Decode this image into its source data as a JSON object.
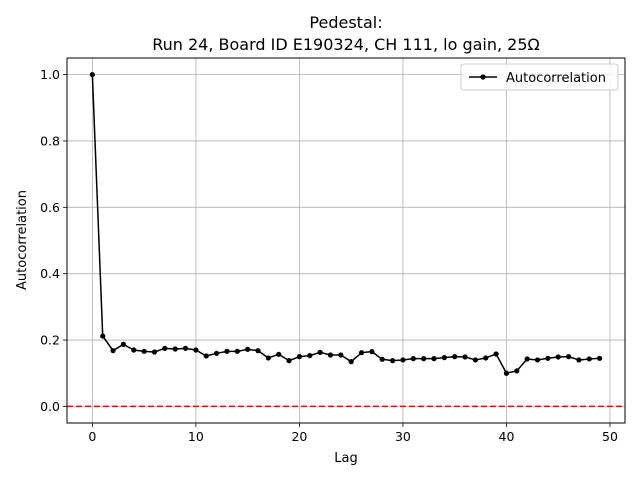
{
  "chart_data": {
    "type": "line",
    "title_line1": "Pedestal:",
    "title_line2": "Run 24, Board ID E190324, CH 111, lo gain, 25Ω",
    "xlabel": "Lag",
    "ylabel": "Autocorrelation",
    "xlim": [
      -2.45,
      51.45
    ],
    "ylim": [
      -0.05,
      1.05
    ],
    "xticks": [
      0,
      10,
      20,
      30,
      40,
      50
    ],
    "yticks": [
      0.0,
      0.2,
      0.4,
      0.6,
      0.8,
      1.0
    ],
    "grid": true,
    "legend_position": "top-right",
    "series": [
      {
        "name": "Autocorrelation",
        "color": "#000000",
        "marker": "circle",
        "x": [
          0,
          1,
          2,
          3,
          4,
          5,
          6,
          7,
          8,
          9,
          10,
          11,
          12,
          13,
          14,
          15,
          16,
          17,
          18,
          19,
          20,
          21,
          22,
          23,
          24,
          25,
          26,
          27,
          28,
          29,
          30,
          31,
          32,
          33,
          34,
          35,
          36,
          37,
          38,
          39,
          40,
          41,
          42,
          43,
          44,
          45,
          46,
          47,
          48,
          49
        ],
        "values": [
          1.0,
          0.212,
          0.168,
          0.187,
          0.17,
          0.166,
          0.164,
          0.175,
          0.173,
          0.175,
          0.17,
          0.152,
          0.16,
          0.166,
          0.166,
          0.172,
          0.168,
          0.146,
          0.157,
          0.138,
          0.15,
          0.153,
          0.163,
          0.155,
          0.155,
          0.135,
          0.162,
          0.165,
          0.142,
          0.138,
          0.14,
          0.144,
          0.144,
          0.144,
          0.147,
          0.15,
          0.149,
          0.14,
          0.146,
          0.158,
          0.1,
          0.107,
          0.143,
          0.14,
          0.145,
          0.149,
          0.15,
          0.14,
          0.143,
          0.145
        ]
      }
    ],
    "reference_line": {
      "y": 0.0,
      "color": "#ff0000",
      "style": "dashed"
    }
  }
}
